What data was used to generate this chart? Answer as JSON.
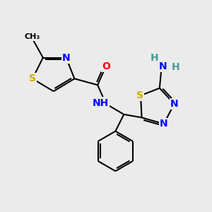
{
  "bg_color": "#ebebeb",
  "atom_colors": {
    "C": "#000000",
    "N": "#0000ff",
    "S": "#ccaa00",
    "O": "#ff0000",
    "H": "#4a9999"
  },
  "bond_color": "#000000",
  "bond_width": 1.5,
  "font_size_atoms": 10,
  "font_size_small": 9,
  "font_size_ch3": 8
}
